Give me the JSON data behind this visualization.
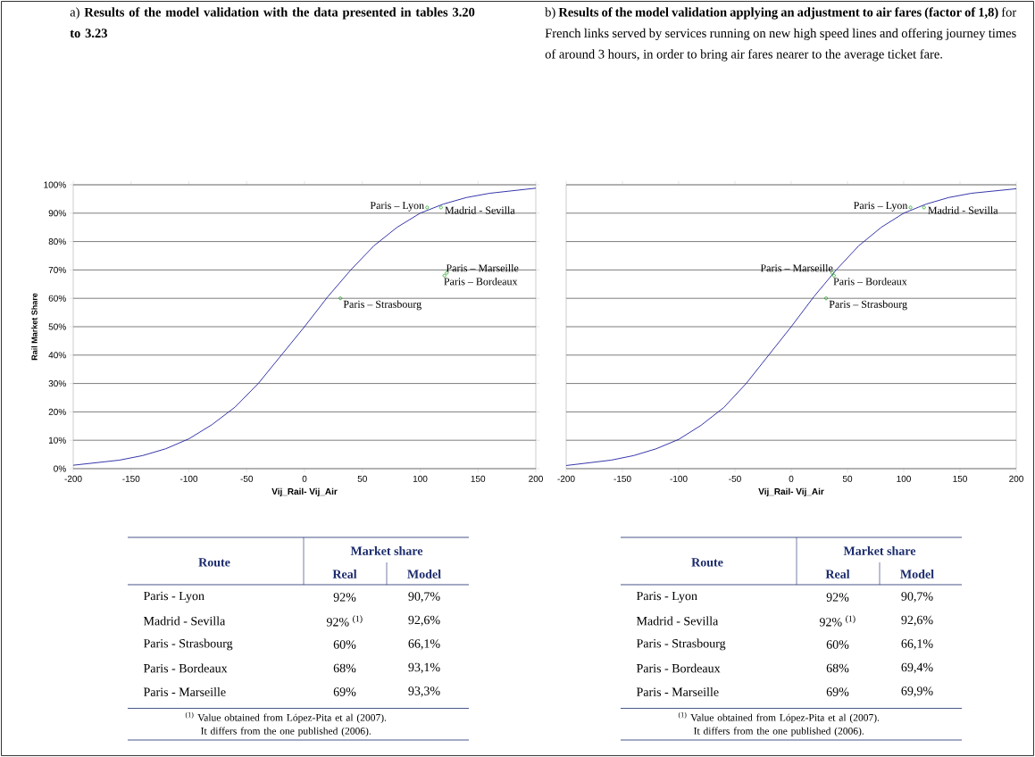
{
  "chart_data": [
    {
      "type": "line",
      "title": "a) **Results of the model validation with the data presented in tables 3.20 to 3.23**",
      "xlabel": "Vij_Rail- Vij_Air",
      "ylabel": "Rail Market Share",
      "xlim": [
        -200,
        200
      ],
      "ylim": [
        0,
        100
      ],
      "xticks": [
        -200,
        -150,
        -100,
        -50,
        0,
        50,
        100,
        150,
        200
      ],
      "yticks": [
        {
          "value": 0,
          "label": "0%"
        },
        {
          "value": 10,
          "label": "10%"
        },
        {
          "value": 20,
          "label": "20%"
        },
        {
          "value": 30,
          "label": "30%"
        },
        {
          "value": 40,
          "label": "40%"
        },
        {
          "value": 50,
          "label": "50%"
        },
        {
          "value": 60,
          "label": "60%"
        },
        {
          "value": 70,
          "label": "70%"
        },
        {
          "value": 80,
          "label": "80%"
        },
        {
          "value": 90,
          "label": "90%"
        },
        {
          "value": 100,
          "label": "100%"
        }
      ],
      "grid": "y",
      "line_style": "solid",
      "series": [
        {
          "color": "#2020a0",
          "marker": "none",
          "x": [
            -200,
            -160,
            -140,
            -120,
            -100,
            -80,
            -60,
            -40,
            -20,
            0,
            20,
            40,
            60,
            80,
            100,
            120,
            140,
            160,
            200
          ],
          "values": [
            1.2,
            3,
            4.6,
            7,
            10.5,
            15.5,
            21.7,
            30,
            40,
            50,
            60.5,
            70,
            78.5,
            85,
            90,
            93.2,
            95.5,
            97,
            98.8
          ]
        },
        {
          "type": "scatter",
          "color": "#009900",
          "marker": "circle",
          "x": [
            106,
            118,
            31,
            121,
            123
          ],
          "values": [
            92,
            92,
            60,
            68,
            69
          ]
        }
      ],
      "annotations": [
        {
          "text": "Paris – Lyon",
          "x": 106,
          "y": 92
        },
        {
          "text": "Madrid - Sevilla",
          "x": 118,
          "y": 92
        },
        {
          "text": "Paris – Marseille",
          "x": 123,
          "y": 69
        },
        {
          "text": "Paris – Bordeaux",
          "x": 121,
          "y": 68
        },
        {
          "text": "Paris – Strasbourg",
          "x": 31,
          "y": 60
        },
        "Route",
        "Market share",
        "Real",
        "Model",
        "Paris - Lyon",
        "92%",
        "90,7%",
        "Madrid - Sevilla",
        "92% $^{(1)}$",
        "92,6%",
        "Paris - Strasbourg",
        "60%",
        "66,1%",
        "Paris - Bordeaux",
        "68%",
        "93,1%",
        "Paris - Marseille",
        "69%",
        "93,3%",
        "$^{(1)}$ Value obtained from López-Pita et al (2007). It differs from the one published (2006)."
      ]
    },
    {
      "type": "line",
      "title": "b) **Results of the model validation applying an adjustment to air fares (factor of 1,8)** for French links served by services running on new high speed lines and offering journey times of around 3 hours, in order to bring air fares nearer to the average ticket fare.",
      "xlabel": "Vij_Rail- Vij_Air",
      "xlim": [
        -200,
        200
      ],
      "ylim": [
        0,
        100
      ],
      "xticks": [
        -200,
        -150,
        -100,
        -50,
        0,
        50,
        100,
        150,
        200
      ],
      "yticks": [
        0,
        10,
        20,
        30,
        40,
        50,
        60,
        70,
        80,
        90,
        100
      ],
      "tick_labels": "x",
      "grid": "y",
      "line_style": "solid",
      "series": [
        {
          "color": "#2020a0",
          "marker": "none",
          "x": [
            -200,
            -160,
            -140,
            -120,
            -100,
            -80,
            -60,
            -40,
            -20,
            0,
            20,
            40,
            60,
            80,
            100,
            120,
            140,
            160,
            200
          ],
          "values": [
            1.1,
            3,
            4.6,
            7,
            10.3,
            15.3,
            21.5,
            30,
            40,
            50,
            60.5,
            70,
            78.5,
            85,
            90,
            93.2,
            95.5,
            97,
            98.6
          ]
        },
        {
          "type": "scatter",
          "color": "#009900",
          "marker": "circle",
          "x": [
            106,
            118,
            31,
            38,
            36.5
          ],
          "values": [
            92,
            92,
            60,
            68,
            69
          ]
        }
      ],
      "annotations": [
        {
          "text": "Paris – Lyon",
          "x": 106,
          "y": 92
        },
        {
          "text": "Madrid - Sevilla",
          "x": 118,
          "y": 92
        },
        {
          "text": "Paris – Marseille",
          "x": 36.5,
          "y": 69
        },
        {
          "text": "Paris – Bordeaux",
          "x": 38,
          "y": 68
        },
        {
          "text": "Paris – Strasbourg",
          "x": 31,
          "y": 60
        },
        "Route",
        "Market share",
        "Real",
        "Model",
        "Paris - Lyon",
        "92%",
        "90,7%",
        "Madrid - Sevilla",
        "92% $^{(1)}$",
        "92,6%",
        "Paris - Strasbourg",
        "60%",
        "66,1%",
        "Paris - Bordeaux",
        "68%",
        "69,4%",
        "Paris - Marseille",
        "69%",
        "69,9%",
        "$^{(1)}$ Value obtained from López-Pita et al (2007). It differs from the one published (2006)."
      ]
    }
  ]
}
